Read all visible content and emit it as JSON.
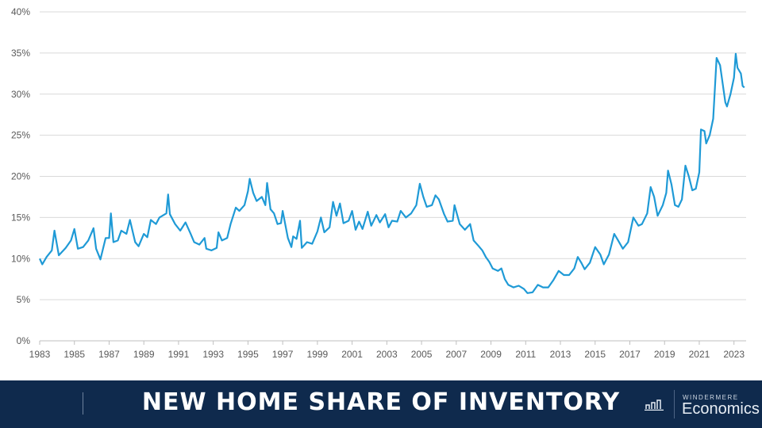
{
  "chart_data": {
    "type": "line",
    "title": "New Home Share of Inventory",
    "xlabel": "",
    "ylabel": "",
    "ylim": [
      0,
      40
    ],
    "xlim": [
      1983,
      2023.7
    ],
    "yticks": [
      "0%",
      "5%",
      "10%",
      "15%",
      "20%",
      "25%",
      "30%",
      "35%",
      "40%"
    ],
    "xticks": [
      "1983",
      "1985",
      "1987",
      "1989",
      "1991",
      "1993",
      "1995",
      "1997",
      "1999",
      "2001",
      "2003",
      "2005",
      "2007",
      "2009",
      "2011",
      "2013",
      "2015",
      "2017",
      "2019",
      "2021",
      "2023"
    ],
    "grid": true,
    "color": "#1f9ad6",
    "series": [
      {
        "name": "New home share of inventory (%)",
        "points": [
          [
            1983.0,
            10.0
          ],
          [
            1983.15,
            9.3
          ],
          [
            1983.4,
            10.2
          ],
          [
            1983.7,
            11.0
          ],
          [
            1983.85,
            13.4
          ],
          [
            1984.1,
            10.4
          ],
          [
            1984.5,
            11.3
          ],
          [
            1984.8,
            12.2
          ],
          [
            1985.0,
            13.6
          ],
          [
            1985.2,
            11.2
          ],
          [
            1985.5,
            11.4
          ],
          [
            1985.8,
            12.2
          ],
          [
            1986.1,
            13.7
          ],
          [
            1986.25,
            11.2
          ],
          [
            1986.5,
            9.9
          ],
          [
            1986.8,
            12.5
          ],
          [
            1987.0,
            12.5
          ],
          [
            1987.1,
            15.5
          ],
          [
            1987.25,
            12.0
          ],
          [
            1987.5,
            12.2
          ],
          [
            1987.7,
            13.4
          ],
          [
            1988.0,
            13.0
          ],
          [
            1988.2,
            14.7
          ],
          [
            1988.5,
            12.0
          ],
          [
            1988.7,
            11.5
          ],
          [
            1989.0,
            13.0
          ],
          [
            1989.2,
            12.6
          ],
          [
            1989.4,
            14.7
          ],
          [
            1989.7,
            14.2
          ],
          [
            1989.9,
            15.0
          ],
          [
            1990.3,
            15.5
          ],
          [
            1990.4,
            17.8
          ],
          [
            1990.5,
            15.4
          ],
          [
            1990.8,
            14.2
          ],
          [
            1991.1,
            13.4
          ],
          [
            1991.4,
            14.4
          ],
          [
            1991.7,
            13.0
          ],
          [
            1991.9,
            12.0
          ],
          [
            1992.2,
            11.7
          ],
          [
            1992.5,
            12.5
          ],
          [
            1992.6,
            11.2
          ],
          [
            1992.9,
            11.0
          ],
          [
            1993.2,
            11.3
          ],
          [
            1993.3,
            13.2
          ],
          [
            1993.5,
            12.2
          ],
          [
            1993.8,
            12.5
          ],
          [
            1994.0,
            14.2
          ],
          [
            1994.3,
            16.2
          ],
          [
            1994.5,
            15.8
          ],
          [
            1994.8,
            16.5
          ],
          [
            1995.0,
            18.2
          ],
          [
            1995.1,
            19.7
          ],
          [
            1995.3,
            18.0
          ],
          [
            1995.5,
            17.0
          ],
          [
            1995.8,
            17.5
          ],
          [
            1996.0,
            16.5
          ],
          [
            1996.1,
            19.2
          ],
          [
            1996.3,
            16.0
          ],
          [
            1996.5,
            15.5
          ],
          [
            1996.7,
            14.2
          ],
          [
            1996.9,
            14.3
          ],
          [
            1997.0,
            15.8
          ],
          [
            1997.3,
            12.5
          ],
          [
            1997.5,
            11.4
          ],
          [
            1997.6,
            12.7
          ],
          [
            1997.8,
            12.4
          ],
          [
            1998.0,
            14.6
          ],
          [
            1998.1,
            11.3
          ],
          [
            1998.4,
            12.0
          ],
          [
            1998.7,
            11.8
          ],
          [
            1999.0,
            13.3
          ],
          [
            1999.2,
            15.0
          ],
          [
            1999.4,
            13.2
          ],
          [
            1999.7,
            13.8
          ],
          [
            1999.9,
            16.9
          ],
          [
            2000.1,
            15.2
          ],
          [
            2000.3,
            16.7
          ],
          [
            2000.5,
            14.3
          ],
          [
            2000.8,
            14.6
          ],
          [
            2001.0,
            15.8
          ],
          [
            2001.2,
            13.5
          ],
          [
            2001.4,
            14.5
          ],
          [
            2001.6,
            13.6
          ],
          [
            2001.9,
            15.7
          ],
          [
            2002.1,
            14.0
          ],
          [
            2002.4,
            15.3
          ],
          [
            2002.6,
            14.4
          ],
          [
            2002.9,
            15.4
          ],
          [
            2003.1,
            13.8
          ],
          [
            2003.3,
            14.6
          ],
          [
            2003.6,
            14.5
          ],
          [
            2003.8,
            15.8
          ],
          [
            2004.1,
            15.0
          ],
          [
            2004.4,
            15.5
          ],
          [
            2004.7,
            16.5
          ],
          [
            2004.9,
            19.1
          ],
          [
            2005.1,
            17.5
          ],
          [
            2005.3,
            16.3
          ],
          [
            2005.6,
            16.5
          ],
          [
            2005.8,
            17.7
          ],
          [
            2006.0,
            17.2
          ],
          [
            2006.3,
            15.4
          ],
          [
            2006.5,
            14.5
          ],
          [
            2006.8,
            14.6
          ],
          [
            2006.9,
            16.5
          ],
          [
            2007.2,
            14.2
          ],
          [
            2007.5,
            13.5
          ],
          [
            2007.8,
            14.2
          ],
          [
            2008.0,
            12.2
          ],
          [
            2008.3,
            11.5
          ],
          [
            2008.5,
            11.0
          ],
          [
            2008.7,
            10.2
          ],
          [
            2008.9,
            9.6
          ],
          [
            2009.1,
            8.8
          ],
          [
            2009.4,
            8.5
          ],
          [
            2009.6,
            8.8
          ],
          [
            2009.8,
            7.5
          ],
          [
            2010.0,
            6.8
          ],
          [
            2010.3,
            6.5
          ],
          [
            2010.6,
            6.7
          ],
          [
            2010.9,
            6.3
          ],
          [
            2011.1,
            5.8
          ],
          [
            2011.4,
            5.9
          ],
          [
            2011.7,
            6.8
          ],
          [
            2012.0,
            6.5
          ],
          [
            2012.3,
            6.5
          ],
          [
            2012.6,
            7.4
          ],
          [
            2012.9,
            8.5
          ],
          [
            2013.2,
            8.0
          ],
          [
            2013.5,
            8.0
          ],
          [
            2013.8,
            8.8
          ],
          [
            2014.0,
            10.2
          ],
          [
            2014.2,
            9.5
          ],
          [
            2014.4,
            8.7
          ],
          [
            2014.7,
            9.5
          ],
          [
            2015.0,
            11.4
          ],
          [
            2015.3,
            10.5
          ],
          [
            2015.5,
            9.3
          ],
          [
            2015.8,
            10.5
          ],
          [
            2016.1,
            13.0
          ],
          [
            2016.3,
            12.3
          ],
          [
            2016.6,
            11.2
          ],
          [
            2016.9,
            12.0
          ],
          [
            2017.2,
            15.0
          ],
          [
            2017.5,
            14.0
          ],
          [
            2017.7,
            14.2
          ],
          [
            2018.0,
            15.5
          ],
          [
            2018.2,
            18.7
          ],
          [
            2018.4,
            17.5
          ],
          [
            2018.6,
            15.2
          ],
          [
            2018.9,
            16.5
          ],
          [
            2019.1,
            18.0
          ],
          [
            2019.2,
            20.7
          ],
          [
            2019.4,
            19.0
          ],
          [
            2019.6,
            16.5
          ],
          [
            2019.8,
            16.3
          ],
          [
            2020.0,
            17.2
          ],
          [
            2020.2,
            21.3
          ],
          [
            2020.4,
            20.0
          ],
          [
            2020.6,
            18.3
          ],
          [
            2020.8,
            18.5
          ],
          [
            2021.0,
            20.5
          ],
          [
            2021.1,
            25.7
          ],
          [
            2021.3,
            25.5
          ],
          [
            2021.4,
            24.0
          ],
          [
            2021.6,
            25.0
          ],
          [
            2021.8,
            27.0
          ],
          [
            2022.0,
            34.4
          ],
          [
            2022.2,
            33.5
          ],
          [
            2022.5,
            29.0
          ],
          [
            2022.6,
            28.5
          ],
          [
            2022.8,
            30.0
          ],
          [
            2023.0,
            32.0
          ],
          [
            2023.1,
            34.9
          ],
          [
            2023.2,
            33.2
          ],
          [
            2023.4,
            32.5
          ],
          [
            2023.5,
            31.0
          ],
          [
            2023.6,
            30.8
          ]
        ]
      }
    ]
  },
  "footer": {
    "title": "NEW HOME SHARE OF INVENTORY",
    "logo_small": "WINDERMERE",
    "logo_big": "Economics"
  },
  "colors": {
    "footer_bg": "#0f2a4d",
    "line": "#1f9ad6",
    "grid": "#d9d9d9"
  }
}
